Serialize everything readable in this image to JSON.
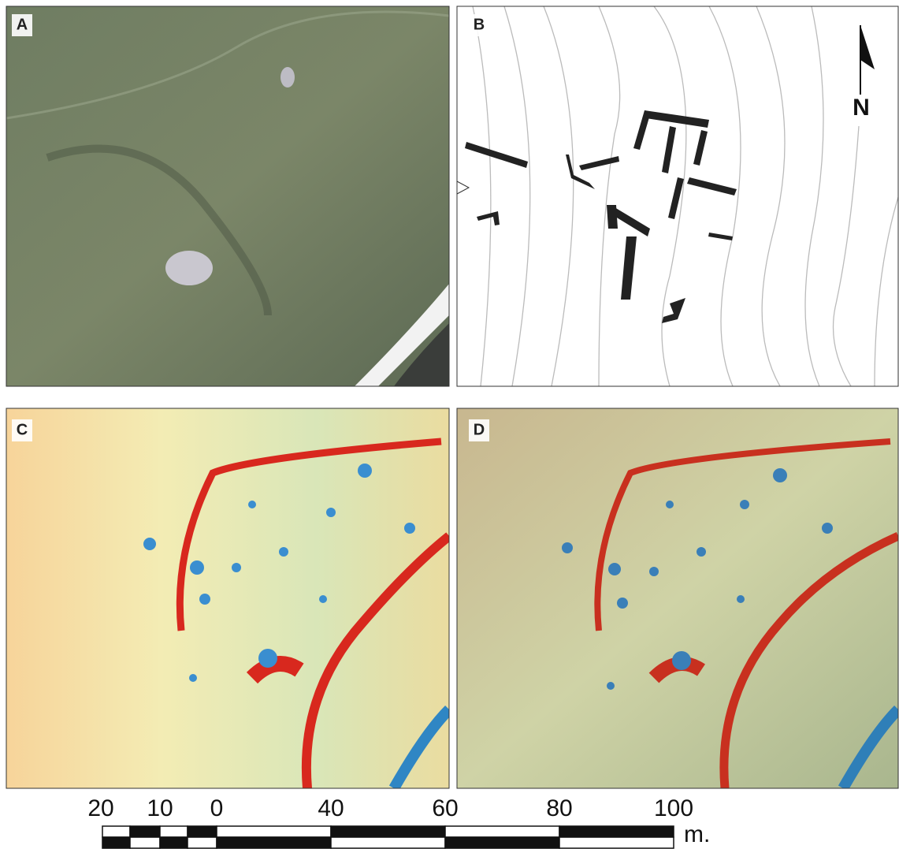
{
  "panels": [
    {
      "label": "A"
    },
    {
      "label": "B"
    },
    {
      "label": "C"
    },
    {
      "label": "D"
    }
  ],
  "north_arrow": {
    "label": "N"
  },
  "scale_bar": {
    "labels": [
      "20",
      "10",
      "0",
      "40",
      "60",
      "80",
      "100"
    ],
    "unit": "m."
  }
}
